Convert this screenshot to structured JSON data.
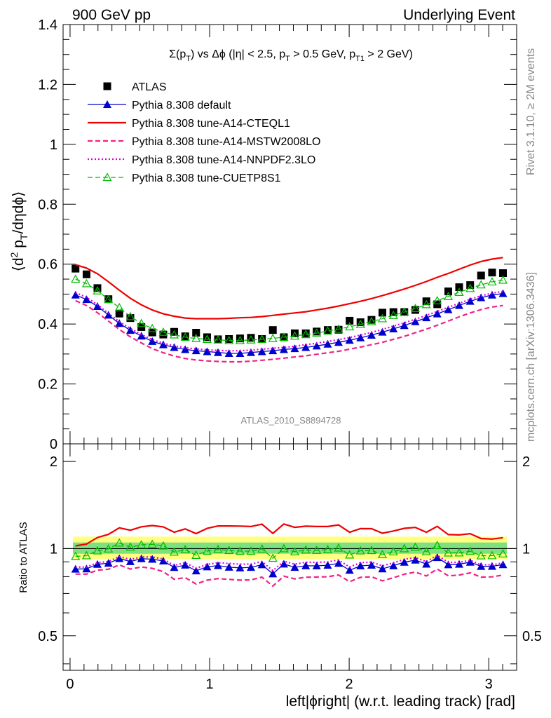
{
  "header": {
    "left": "900 GeV pp",
    "right": "Underlying Event"
  },
  "side_text": {
    "rivet": "Rivet 3.1.10, ≥ 2M events",
    "mcplots": "mcplots.cern.ch [arXiv:1306.3436]"
  },
  "watermark": "ATLAS_2010_S8894728",
  "chart_data": {
    "type": "line",
    "title": "Σ(p_T) vs Δφ (|η| < 2.5, p_T > 0.5 GeV, p_T1 > 2 GeV)",
    "xlabel": "left|ϕright| (w.r.t. leading track) [rad]",
    "ylabel": "⟨d² p_T/dηdϕ⟩",
    "ratio_ylabel": "Ratio to ATLAS",
    "xlim": [
      -0.05,
      3.2
    ],
    "ylim": [
      0,
      1.4
    ],
    "ratio_ylim": [
      0.38,
      2.3
    ],
    "ratio_log_scale": true,
    "legend_position": "top-left",
    "x_ticks": [
      "0",
      "1",
      "2",
      "3"
    ],
    "y_ticks": [
      "0",
      "0.2",
      "0.4",
      "0.6",
      "0.8",
      "1",
      "1.2",
      "1.4"
    ],
    "ratio_ticks": [
      "0.5",
      "1",
      "2"
    ],
    "ratio_band_colors": {
      "inner": "#7fe07f",
      "outer": "#ffff80"
    },
    "x": [
      0.039,
      0.118,
      0.196,
      0.275,
      0.353,
      0.432,
      0.511,
      0.589,
      0.668,
      0.746,
      0.825,
      0.903,
      0.982,
      1.06,
      1.139,
      1.218,
      1.296,
      1.375,
      1.453,
      1.532,
      1.61,
      1.689,
      1.767,
      1.846,
      1.924,
      2.003,
      2.081,
      2.16,
      2.238,
      2.317,
      2.395,
      2.474,
      2.553,
      2.631,
      2.71,
      2.788,
      2.867,
      2.945,
      3.024,
      3.102
    ],
    "series": [
      {
        "name": "ATLAS",
        "style": "square",
        "color": "#000000",
        "values": [
          0.585,
          0.566,
          0.52,
          0.483,
          0.435,
          0.42,
          0.39,
          0.372,
          0.365,
          0.374,
          0.359,
          0.371,
          0.356,
          0.349,
          0.35,
          0.352,
          0.354,
          0.35,
          0.38,
          0.356,
          0.369,
          0.369,
          0.375,
          0.38,
          0.381,
          0.411,
          0.406,
          0.414,
          0.438,
          0.44,
          0.44,
          0.447,
          0.476,
          0.466,
          0.509,
          0.523,
          0.53,
          0.562,
          0.572,
          0.57
        ]
      },
      {
        "name": "Pythia 8.308 default",
        "style": "solid-triangle",
        "color": "#0000cc",
        "values": [
          0.497,
          0.482,
          0.459,
          0.43,
          0.402,
          0.379,
          0.36,
          0.342,
          0.331,
          0.322,
          0.315,
          0.311,
          0.308,
          0.305,
          0.302,
          0.302,
          0.305,
          0.308,
          0.311,
          0.315,
          0.318,
          0.322,
          0.327,
          0.333,
          0.339,
          0.346,
          0.354,
          0.363,
          0.373,
          0.384,
          0.395,
          0.408,
          0.421,
          0.434,
          0.448,
          0.462,
          0.476,
          0.488,
          0.497,
          0.502
        ]
      },
      {
        "name": "Pythia 8.308 tune-A14-CTEQL1",
        "style": "solid",
        "color": "#ee0000",
        "values": [
          0.598,
          0.587,
          0.568,
          0.541,
          0.513,
          0.486,
          0.464,
          0.447,
          0.434,
          0.426,
          0.42,
          0.418,
          0.418,
          0.418,
          0.419,
          0.421,
          0.422,
          0.425,
          0.429,
          0.433,
          0.437,
          0.441,
          0.447,
          0.453,
          0.46,
          0.468,
          0.476,
          0.485,
          0.495,
          0.506,
          0.517,
          0.529,
          0.542,
          0.556,
          0.569,
          0.583,
          0.597,
          0.609,
          0.617,
          0.622
        ]
      },
      {
        "name": "Pythia 8.308 tune-A14-MSTW2008LO",
        "style": "dashed",
        "color": "#ee2288",
        "values": [
          0.478,
          0.462,
          0.438,
          0.41,
          0.382,
          0.357,
          0.337,
          0.318,
          0.304,
          0.293,
          0.285,
          0.28,
          0.277,
          0.275,
          0.274,
          0.274,
          0.276,
          0.279,
          0.282,
          0.286,
          0.29,
          0.294,
          0.299,
          0.304,
          0.309,
          0.316,
          0.323,
          0.331,
          0.339,
          0.349,
          0.359,
          0.371,
          0.383,
          0.396,
          0.41,
          0.424,
          0.437,
          0.448,
          0.457,
          0.462
        ]
      },
      {
        "name": "Pythia 8.308 tune-A14-NNPDF2.3LO",
        "style": "dotted",
        "color": "#dd00dd",
        "values": [
          0.505,
          0.489,
          0.465,
          0.436,
          0.408,
          0.385,
          0.365,
          0.348,
          0.336,
          0.327,
          0.321,
          0.317,
          0.314,
          0.312,
          0.311,
          0.311,
          0.313,
          0.316,
          0.319,
          0.322,
          0.326,
          0.331,
          0.336,
          0.342,
          0.348,
          0.355,
          0.363,
          0.372,
          0.382,
          0.393,
          0.404,
          0.416,
          0.429,
          0.442,
          0.456,
          0.469,
          0.483,
          0.494,
          0.503,
          0.509
        ]
      },
      {
        "name": "Pythia 8.308 tune-CUETP8S1",
        "style": "dashed-open-triangle",
        "color": "#00bb00",
        "values": [
          0.55,
          0.535,
          0.511,
          0.482,
          0.455,
          0.425,
          0.402,
          0.385,
          0.373,
          0.364,
          0.356,
          0.352,
          0.349,
          0.347,
          0.345,
          0.345,
          0.347,
          0.349,
          0.352,
          0.356,
          0.36,
          0.365,
          0.37,
          0.377,
          0.383,
          0.391,
          0.399,
          0.408,
          0.418,
          0.429,
          0.44,
          0.452,
          0.465,
          0.478,
          0.492,
          0.506,
          0.519,
          0.531,
          0.541,
          0.547
        ]
      }
    ]
  }
}
